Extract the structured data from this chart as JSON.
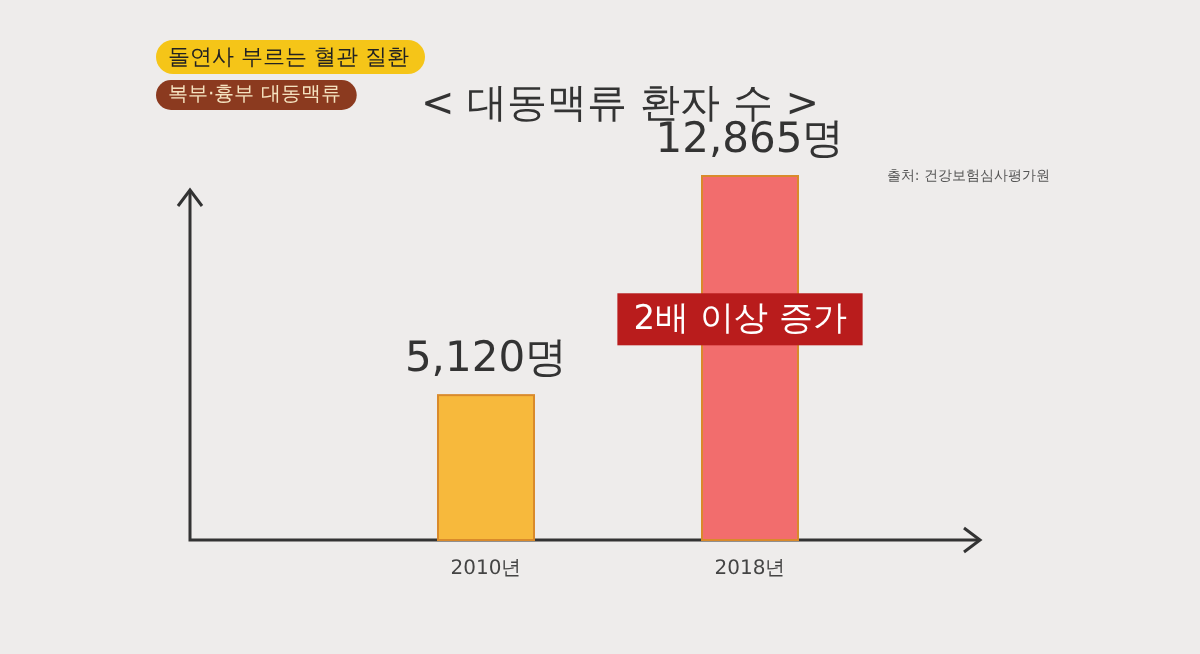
{
  "chart_data": {
    "type": "bar",
    "title": "< 대동맥류 환자 수 >",
    "categories": [
      "2010년",
      "2018년"
    ],
    "values": [
      5120,
      12865
    ],
    "value_labels": [
      "5,120명",
      "12,865명"
    ],
    "colors": [
      "#f7b93c",
      "#f26d6d"
    ],
    "annotations": [
      "돌연사 부르는 혈관 질환",
      "복부·흉부 대동맥류",
      "출처: 건강보험심사평가원",
      "2배 이상 증가"
    ]
  }
}
